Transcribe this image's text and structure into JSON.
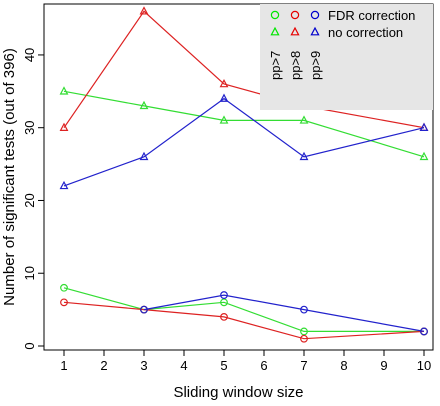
{
  "chart_data": {
    "type": "line",
    "xlabel": "Sliding window size",
    "ylabel": "Number of significant tests (out of 396)",
    "xlim": [
      1,
      10
    ],
    "ylim": [
      0,
      47
    ],
    "x_ticks": [
      1,
      2,
      3,
      4,
      5,
      6,
      7,
      8,
      9,
      10
    ],
    "y_ticks": [
      0,
      10,
      20,
      30,
      40
    ],
    "legend": {
      "placement": "top-right",
      "background": "#e6e6e6",
      "symbol_rows": [
        {
          "marker": "circle",
          "label": "FDR correction"
        },
        {
          "marker": "triangle",
          "label": "no correction"
        }
      ],
      "threshold_labels": [
        {
          "label": "pp>7",
          "color": "#00e600"
        },
        {
          "label": "pp>8",
          "color": "#e60000"
        },
        {
          "label": "pp>9",
          "color": "#0000cc"
        }
      ]
    },
    "series": [
      {
        "threshold": "pp>7",
        "correction": "FDR correction",
        "marker": "circle",
        "color": "#33dd33",
        "x": [
          1,
          3,
          5,
          7,
          10
        ],
        "values": [
          8,
          5,
          6,
          2,
          2
        ]
      },
      {
        "threshold": "pp>8",
        "correction": "FDR correction",
        "marker": "circle",
        "color": "#dd2222",
        "x": [
          1,
          3,
          5,
          7,
          10
        ],
        "values": [
          6,
          5,
          4,
          1,
          2
        ]
      },
      {
        "threshold": "pp>9",
        "correction": "FDR correction",
        "marker": "circle",
        "color": "#2222cc",
        "x": [
          3,
          5,
          7,
          10
        ],
        "values": [
          5,
          7,
          5,
          2
        ]
      },
      {
        "threshold": "pp>7",
        "correction": "no correction",
        "marker": "triangle",
        "color": "#33dd33",
        "x": [
          1,
          3,
          5,
          7,
          10
        ],
        "values": [
          35,
          33,
          31,
          31,
          26
        ]
      },
      {
        "threshold": "pp>8",
        "correction": "no correction",
        "marker": "triangle",
        "color": "#dd2222",
        "x": [
          1,
          3,
          5,
          7,
          10
        ],
        "values": [
          30,
          46,
          36,
          33,
          30
        ]
      },
      {
        "threshold": "pp>9",
        "correction": "no correction",
        "marker": "triangle",
        "color": "#2222cc",
        "x": [
          1,
          3,
          5,
          7,
          10
        ],
        "values": [
          22,
          26,
          34,
          26,
          30
        ]
      }
    ]
  }
}
